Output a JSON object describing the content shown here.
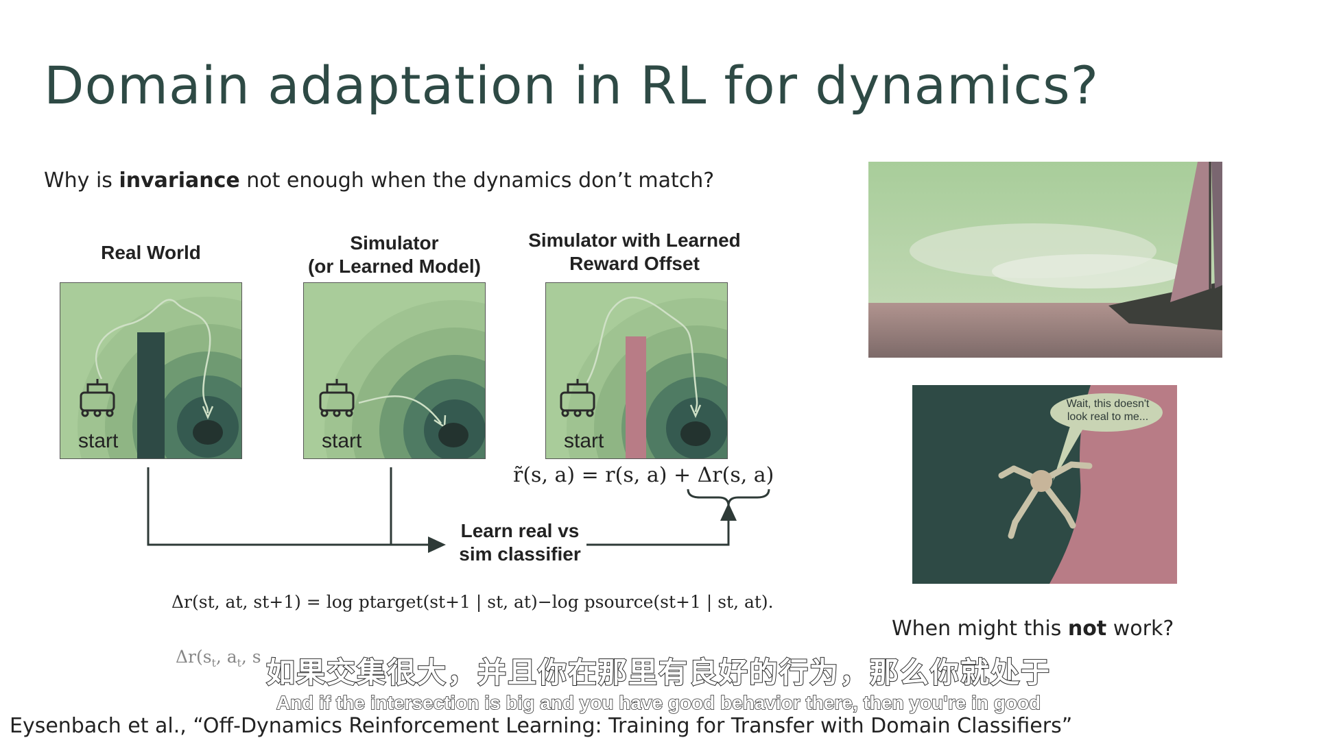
{
  "slide": {
    "title": "Domain adaptation in RL for dynamics?",
    "question_pre": "Why is ",
    "question_bold": "invariance",
    "question_post": " not enough when the dynamics don’t match?",
    "panels": [
      {
        "label_line1": "Real World",
        "label_line2": "",
        "start_label": "start"
      },
      {
        "label_line1": "Simulator",
        "label_line2": "(or Learned Model)",
        "start_label": "start"
      },
      {
        "label_line1": "Simulator with Learned",
        "label_line2": "Reward Offset",
        "start_label": "start"
      }
    ],
    "classifier_line1": "Learn real vs",
    "classifier_line2": "sim classifier",
    "reward_formula": "r̃(s, a) = r(s, a) + Δr(s, a)",
    "delta_formula": "Δr(st, at, st+1) = log ptarget(st+1 | st, at)−log psource(st+1 | st, at).",
    "robot_speech": "Wait, this doesn't look real to me...",
    "not_work_pre": "When might this ",
    "not_work_bold": "not",
    "not_work_post": " work?",
    "citation": "Eysenbach et al., “Off-Dynamics Reinforcement Learning: Training for Transfer with Domain Classifiers”"
  },
  "subtitles": {
    "chinese": "如果交集很大，并且你在那里有良好的行为，那么你就处于",
    "english": "And if the intersection is big and you have good behavior there, then you're in good"
  },
  "colors": {
    "accent_dark": "#2e4a45",
    "light_green": "#a9cc9a",
    "wall_pink": "#b87c86"
  }
}
